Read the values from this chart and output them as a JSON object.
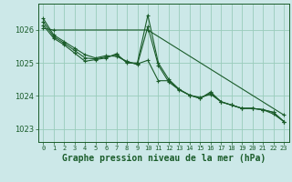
{
  "background_color": "#cce8e8",
  "grid_color": "#99ccbb",
  "line_color": "#1a5c2a",
  "title": "Graphe pression niveau de la mer (hPa)",
  "xlim": [
    -0.5,
    23.5
  ],
  "ylim": [
    1022.6,
    1026.8
  ],
  "yticks": [
    1023,
    1024,
    1025,
    1026
  ],
  "xticks": [
    0,
    1,
    2,
    3,
    4,
    5,
    6,
    7,
    8,
    9,
    10,
    11,
    12,
    13,
    14,
    15,
    16,
    17,
    18,
    19,
    20,
    21,
    22,
    23
  ],
  "series": [
    {
      "x": [
        0,
        1,
        2,
        3,
        4,
        5,
        6,
        7,
        8,
        9,
        10,
        11,
        12,
        13,
        14,
        15,
        16,
        17,
        18,
        19,
        20,
        21,
        22,
        23
      ],
      "y": [
        1026.35,
        1025.85,
        1025.65,
        1025.45,
        1025.25,
        1025.15,
        1025.22,
        1025.2,
        1025.05,
        1024.95,
        1026.1,
        1024.93,
        1024.42,
        1024.18,
        1024.02,
        1023.95,
        1024.05,
        1023.82,
        1023.72,
        1023.62,
        1023.62,
        1023.58,
        1023.5,
        1023.22
      ]
    },
    {
      "x": [
        0,
        1,
        2,
        3,
        4,
        5,
        6,
        7,
        8,
        9,
        10,
        11,
        12,
        13,
        14,
        15,
        16,
        17,
        18,
        19,
        20,
        21,
        22,
        23
      ],
      "y": [
        1026.15,
        1025.75,
        1025.55,
        1025.3,
        1025.05,
        1025.1,
        1025.15,
        1025.28,
        1025.0,
        1025.0,
        1026.45,
        1025.0,
        1024.5,
        1024.2,
        1024.02,
        1023.92,
        1024.12,
        1023.82,
        1023.72,
        1023.62,
        1023.62,
        1023.58,
        1023.45,
        1023.22
      ]
    },
    {
      "x": [
        0,
        1,
        10,
        23
      ],
      "y": [
        1026.05,
        1026.0,
        1026.0,
        1023.42
      ]
    },
    {
      "x": [
        0,
        1,
        2,
        3,
        4,
        5,
        6,
        7,
        8,
        9,
        10,
        11,
        12,
        13,
        14,
        15,
        16,
        17,
        18,
        19,
        20,
        21,
        22,
        23
      ],
      "y": [
        1026.25,
        1025.8,
        1025.6,
        1025.38,
        1025.15,
        1025.12,
        1025.18,
        1025.24,
        1025.02,
        1024.97,
        1025.08,
        1024.46,
        1024.46,
        1024.19,
        1024.02,
        1023.93,
        1024.08,
        1023.82,
        1023.72,
        1023.62,
        1023.62,
        1023.58,
        1023.5,
        1023.22
      ]
    }
  ]
}
